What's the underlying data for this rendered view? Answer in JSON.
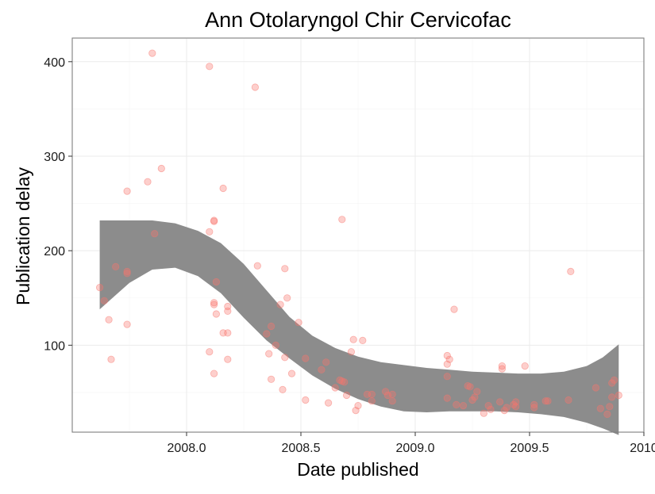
{
  "chart_data": {
    "type": "scatter",
    "title": "Ann Otolaryngol Chir Cervicofac",
    "xlabel": "Date published",
    "ylabel": "Publication delay",
    "xlim": [
      2007.5,
      2010.0
    ],
    "ylim": [
      8,
      425
    ],
    "x_ticks": [
      2008.0,
      2008.5,
      2009.0,
      2009.5,
      2010.0
    ],
    "x_tick_labels": [
      "2008.0",
      "2008.5",
      "2009.0",
      "2009.5",
      "2010"
    ],
    "y_ticks": [
      100,
      200,
      300,
      400
    ],
    "y_tick_labels": [
      "100",
      "200",
      "300",
      "400"
    ],
    "grid": true,
    "point_color": "#f8766d",
    "point_opacity": 0.35,
    "band_color": "#8c8c8c",
    "series": [
      {
        "values": [
          [
            2007.62,
            161
          ],
          [
            2007.64,
            147
          ],
          [
            2007.66,
            127
          ],
          [
            2007.67,
            85
          ],
          [
            2007.69,
            183
          ],
          [
            2007.74,
            263
          ],
          [
            2007.74,
            178
          ],
          [
            2007.74,
            176
          ],
          [
            2007.74,
            122
          ],
          [
            2007.83,
            273
          ],
          [
            2007.85,
            409
          ],
          [
            2007.86,
            218
          ],
          [
            2007.89,
            287
          ],
          [
            2008.1,
            395
          ],
          [
            2008.1,
            220
          ],
          [
            2008.1,
            93
          ],
          [
            2008.12,
            232
          ],
          [
            2008.12,
            231
          ],
          [
            2008.12,
            145
          ],
          [
            2008.12,
            143
          ],
          [
            2008.12,
            70
          ],
          [
            2008.13,
            133
          ],
          [
            2008.13,
            167
          ],
          [
            2008.16,
            266
          ],
          [
            2008.16,
            113
          ],
          [
            2008.18,
            141
          ],
          [
            2008.18,
            136
          ],
          [
            2008.18,
            113
          ],
          [
            2008.18,
            85
          ],
          [
            2008.3,
            373
          ],
          [
            2008.31,
            184
          ],
          [
            2008.35,
            112
          ],
          [
            2008.36,
            91
          ],
          [
            2008.37,
            120
          ],
          [
            2008.37,
            64
          ],
          [
            2008.39,
            100
          ],
          [
            2008.41,
            143
          ],
          [
            2008.42,
            53
          ],
          [
            2008.43,
            181
          ],
          [
            2008.43,
            87
          ],
          [
            2008.44,
            150
          ],
          [
            2008.46,
            70
          ],
          [
            2008.49,
            124
          ],
          [
            2008.52,
            86
          ],
          [
            2008.52,
            42
          ],
          [
            2008.59,
            74
          ],
          [
            2008.61,
            82
          ],
          [
            2008.62,
            39
          ],
          [
            2008.65,
            55
          ],
          [
            2008.67,
            63
          ],
          [
            2008.68,
            233
          ],
          [
            2008.68,
            62
          ],
          [
            2008.69,
            61
          ],
          [
            2008.7,
            47
          ],
          [
            2008.72,
            93
          ],
          [
            2008.73,
            106
          ],
          [
            2008.74,
            31
          ],
          [
            2008.75,
            36
          ],
          [
            2008.77,
            105
          ],
          [
            2008.79,
            48
          ],
          [
            2008.81,
            48
          ],
          [
            2008.81,
            41
          ],
          [
            2008.87,
            51
          ],
          [
            2008.88,
            47
          ],
          [
            2008.9,
            48
          ],
          [
            2008.9,
            41
          ],
          [
            2009.14,
            89
          ],
          [
            2009.14,
            80
          ],
          [
            2009.14,
            67
          ],
          [
            2009.14,
            44
          ],
          [
            2009.15,
            85
          ],
          [
            2009.17,
            138
          ],
          [
            2009.18,
            37
          ],
          [
            2009.21,
            36
          ],
          [
            2009.23,
            57
          ],
          [
            2009.24,
            56
          ],
          [
            2009.25,
            42
          ],
          [
            2009.26,
            45
          ],
          [
            2009.27,
            51
          ],
          [
            2009.3,
            28
          ],
          [
            2009.32,
            36
          ],
          [
            2009.33,
            32
          ],
          [
            2009.37,
            40
          ],
          [
            2009.38,
            78
          ],
          [
            2009.38,
            75
          ],
          [
            2009.39,
            31
          ],
          [
            2009.4,
            34
          ],
          [
            2009.43,
            37
          ],
          [
            2009.44,
            35
          ],
          [
            2009.44,
            40
          ],
          [
            2009.48,
            78
          ],
          [
            2009.52,
            37
          ],
          [
            2009.52,
            34
          ],
          [
            2009.57,
            41
          ],
          [
            2009.58,
            41
          ],
          [
            2009.67,
            42
          ],
          [
            2009.68,
            178
          ],
          [
            2009.79,
            55
          ],
          [
            2009.81,
            33
          ],
          [
            2009.84,
            27
          ],
          [
            2009.85,
            35
          ],
          [
            2009.86,
            60
          ],
          [
            2009.86,
            45
          ],
          [
            2009.87,
            63
          ],
          [
            2009.89,
            47
          ]
        ]
      }
    ],
    "smooth_band": {
      "x": [
        2007.62,
        2007.75,
        2007.85,
        2007.95,
        2008.05,
        2008.15,
        2008.25,
        2008.35,
        2008.45,
        2008.55,
        2008.65,
        2008.75,
        2008.85,
        2008.95,
        2009.05,
        2009.15,
        2009.25,
        2009.35,
        2009.45,
        2009.55,
        2009.65,
        2009.75,
        2009.82,
        2009.89
      ],
      "upper": [
        232,
        232,
        232,
        229,
        221,
        208,
        186,
        158,
        130,
        110,
        97,
        88,
        82,
        79,
        76,
        74,
        72,
        71,
        70,
        70,
        72,
        78,
        87,
        101
      ],
      "lower": [
        138,
        166,
        180,
        182,
        173,
        155,
        129,
        105,
        86,
        68,
        54,
        43,
        35,
        30,
        29,
        30,
        30,
        30,
        29,
        27,
        24,
        18,
        12,
        5
      ]
    }
  }
}
